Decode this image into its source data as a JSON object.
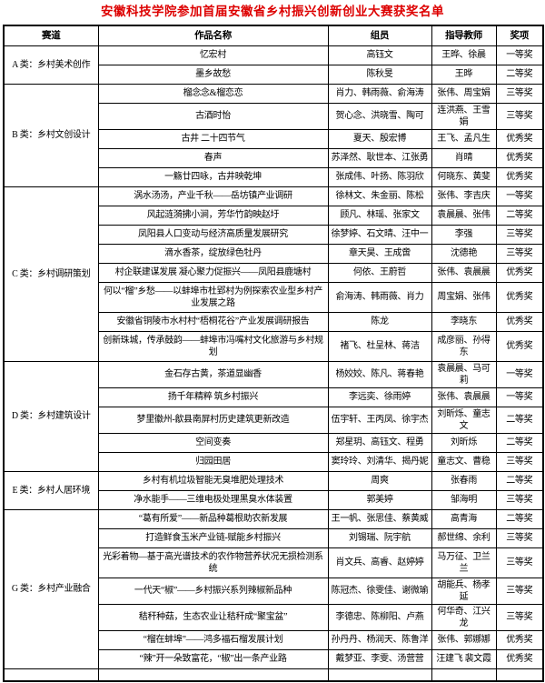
{
  "title": "安徽科技学院参加首届安徽省乡村振兴创新创业大赛获奖名单",
  "colors": {
    "title_red": "#dd0000",
    "border": "#000000",
    "background": "#ffffff"
  },
  "table": {
    "headers": [
      "赛道",
      "作品名称",
      "组员",
      "指导教师",
      "奖项"
    ],
    "groups": [
      {
        "track": "A 类：乡村美术创作",
        "rows": [
          {
            "work": "忆宏村",
            "members": "高钰文",
            "advisors": "王晔、徐晨",
            "award": "一等奖"
          },
          {
            "work": "墨乡故愁",
            "members": "陈秋旻",
            "advisors": "王晔",
            "award": "二等奖"
          }
        ]
      },
      {
        "track": "B 类：乡村文创设计",
        "rows": [
          {
            "work": "榴念念&榴恋恋",
            "members": "肖力、韩雨薇、俞海涛",
            "advisors": "张伟、周宝娟",
            "award": "三等奖"
          },
          {
            "work": "古酒时怡",
            "members": "贺心念、洪晓雪、陶可",
            "advisors": "连洪燕、王雪娟",
            "award": "三等奖"
          },
          {
            "work": "古井 二十四节气",
            "members": "夏天、殷宏博",
            "advisors": "王飞、孟凡生",
            "award": "优秀奖"
          },
          {
            "work": "春声",
            "members": "苏泽然、耿世本、江张勇",
            "advisors": "肖晴",
            "award": "优秀奖"
          },
          {
            "work": "一觞廿四咏，古井映乾坤",
            "members": "张成伟、叶扬、陈羽欣",
            "advisors": "何晓东、黄斐",
            "award": "优秀奖"
          }
        ]
      },
      {
        "track": "C 类：乡村调研策划",
        "rows": [
          {
            "work": "涡水汤汤，产业千秋——岳坊镇产业调研",
            "members": "徐林文、朱金丽、陈松",
            "advisors": "张伟、李吉庆",
            "award": "一等奖"
          },
          {
            "work": "风起涟漪拂小涧，芳华竹韵映赵圩",
            "members": "顾凡、林瑶、张家文",
            "advisors": "袁晨晨、张伟",
            "award": "二等奖"
          },
          {
            "work": "凤阳县人口变动与经济高质量发展研究",
            "members": "徐梦婷、石文晴、汪中一",
            "advisors": "李强",
            "award": "三等奖"
          },
          {
            "work": "滴水香茶，绽放绿色牡丹",
            "members": "章天昊、王成啻",
            "advisors": "沈德艳",
            "award": "三等奖"
          },
          {
            "work": "村企联建谋发展 凝心聚力促振兴——凤阳县鹿塘村",
            "members": "何依、王蔚哲",
            "advisors": "张伟、袁晨晨",
            "award": "优秀奖"
          },
          {
            "work": "何以“榴”乡愁——以蚌埠市杜郢村为例探索农业型乡村产业发展之路",
            "members": "俞海涛、韩雨薇、肖力",
            "advisors": "周宝娟、张伟",
            "award": "优秀奖",
            "tall": true
          },
          {
            "work": "安徽省铜陵市水村村“梧桐花谷”产业发展调研报告",
            "members": "陈龙",
            "advisors": "李晓东",
            "award": "优秀奖"
          },
          {
            "work": "创新珠城，传承鼓韵——蚌埠市冯嘴村文化旅游与乡村规划",
            "members": "褚飞、杜呈林、蒋洁",
            "advisors": "成彦丽、孙得东",
            "award": "优秀奖",
            "tall": true
          }
        ]
      },
      {
        "track": "D 类：乡村建筑设计",
        "rows": [
          {
            "work": "金石存古黄，茶道显幽香",
            "members": "杨姣姣、陈凡、蒋春艳",
            "advisors": "袁晨晨、马可莉",
            "award": "一等奖"
          },
          {
            "work": "扬千年精粹 筑乡村振兴",
            "members": "李远奕、徐雨婷",
            "advisors": "张伟、袁晨晨",
            "award": "一等奖"
          },
          {
            "work": "梦里徽州-歙县南屏村历史建筑更新改造",
            "members": "伍宇轩、王丙凤、徐宇杰",
            "advisors": "刘昕烁、童志文",
            "award": "二等奖"
          },
          {
            "work": "空间变奏",
            "members": "郑星玥、高钰文、程勇",
            "advisors": "刘昕烁",
            "award": "二等奖"
          },
          {
            "work": "归园田居",
            "members": "窦玲玲、刘清华、揭丹妮",
            "advisors": "童志文、曹稳",
            "award": "三等奖"
          }
        ]
      },
      {
        "track": "E 类：乡村人居环境",
        "rows": [
          {
            "work": "乡村有机垃圾智能无臭堆肥处理技术",
            "members": "周爽",
            "advisors": "张春雨",
            "award": "二等奖"
          },
          {
            "work": "净水能手——三维电极处理黑臭水体装置",
            "members": "郭美婷",
            "advisors": "邹海明",
            "award": "三等奖"
          }
        ]
      },
      {
        "track": "G 类：乡村产业融合",
        "rows": [
          {
            "work": "“葛有所爱”——新品种葛根助农新发展",
            "members": "王一帆、张思佳、蔡黄威",
            "advisors": "高青海",
            "award": "二等奖"
          },
          {
            "work": "打造鲜食玉米产业链-赋能乡村振兴",
            "members": "刘锡瑞、阮宇航",
            "advisors": "郝世绵、余利",
            "award": "三等奖"
          },
          {
            "work": "光彩着物—基于高光谱技术的农作物营养状况无损检测系统",
            "members": "肖文兵、高睿、赵婷婷",
            "advisors": "马万征、卫兰兰",
            "award": "三等奖",
            "tall": true
          },
          {
            "work": "一代天“椒”——乡村振兴系列辣椒新品种",
            "members": "陈冠杰、徐雯佳、谢微瑜",
            "advisors": "胡能兵、杨孝延",
            "award": "三等奖"
          },
          {
            "work": "秸秆种菇，生态农业让秸秆成“聚宝盆”",
            "members": "李德忠、陈柳阳、卢燕",
            "advisors": "何华奇、江兴龙",
            "award": "三等奖"
          },
          {
            "work": "“榴在蚌埠”——鸿多福石榴发展计划",
            "members": "孙丹丹、杨润天、陈鲁洋",
            "advisors": "张伟、郭娜娜",
            "award": "优秀奖"
          },
          {
            "work": "“辣”开一朵致富花，“椒”出一条产业路",
            "members": "戴梦亚、李雯、汤营营",
            "advisors": "汪建飞 裴文霞",
            "award": "优秀奖"
          }
        ]
      }
    ]
  }
}
